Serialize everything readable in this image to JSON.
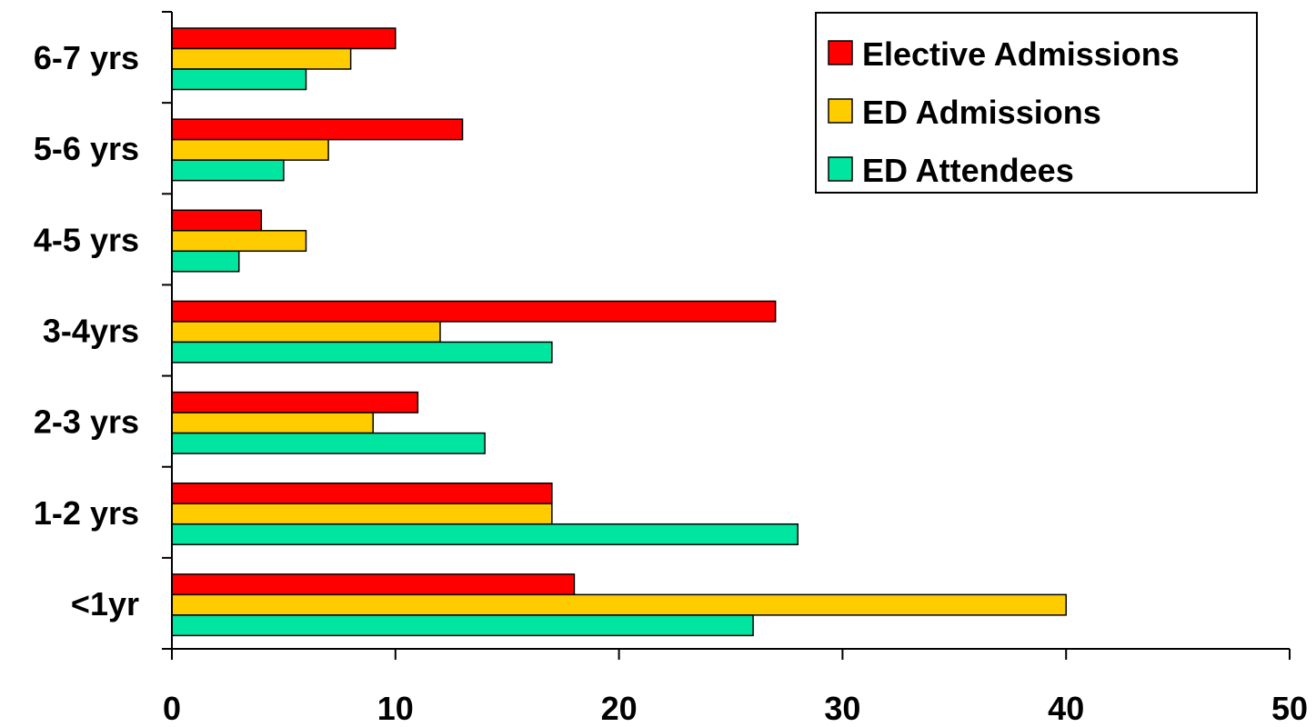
{
  "chart_data": {
    "type": "bar",
    "orientation": "horizontal",
    "categories": [
      "<1yr",
      "1-2 yrs",
      "2-3 yrs",
      "3-4yrs",
      "4-5 yrs",
      "5-6 yrs",
      "6-7 yrs"
    ],
    "series": [
      {
        "name": "Elective Admissions",
        "color": "#ff0000",
        "values": [
          18,
          17,
          11,
          27,
          4,
          13,
          10
        ]
      },
      {
        "name": "ED Admissions",
        "color": "#ffcc00",
        "values": [
          40,
          17,
          9,
          12,
          6,
          7,
          8
        ]
      },
      {
        "name": "ED Attendees",
        "color": "#00e5a0",
        "values": [
          26,
          28,
          14,
          17,
          3,
          5,
          6
        ]
      }
    ],
    "xlim": [
      0,
      50
    ],
    "xticks": [
      "0",
      "10",
      "20",
      "30",
      "40",
      "50"
    ],
    "title": "",
    "xlabel": "",
    "ylabel": "",
    "grid": false,
    "legend_position": "top-right"
  }
}
